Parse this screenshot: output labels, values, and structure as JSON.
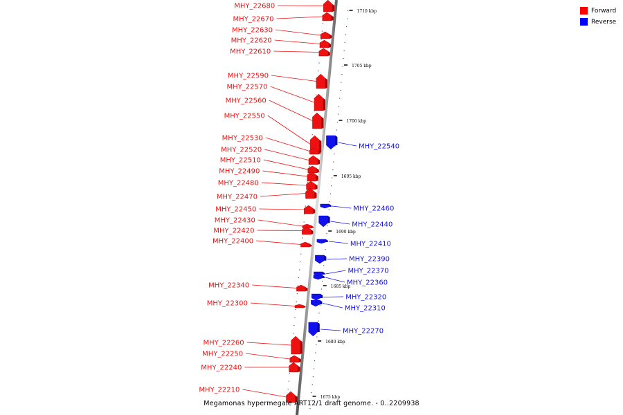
{
  "legend": {
    "forward_label": "Forward",
    "reverse_label": "Reverse",
    "forward_color": "#ff0000",
    "reverse_color": "#0000ff"
  },
  "caption": "Megamonas hypermegale ART12/1 draft genome. - 0..2209938",
  "strand_colors": {
    "forward": "#ee1111",
    "reverse": "#1111ee"
  },
  "ruler_ticks": [
    "1710 kbp",
    "1705 kbp",
    "1700 kbp",
    "1695 kbp",
    "1690 kbp",
    "1685 kbp",
    "1680 kbp",
    "1675 kbp"
  ],
  "forward_genes": [
    "MHY_22680",
    "MHY_22670",
    "MHY_22630",
    "MHY_22620",
    "MHY_22610",
    "MHY_22590",
    "MHY_22570",
    "MHY_22560",
    "MHY_22550",
    "MHY_22530",
    "MHY_22520",
    "MHY_22510",
    "MHY_22490",
    "MHY_22480",
    "MHY_22470",
    "MHY_22450",
    "MHY_22430",
    "MHY_22420",
    "MHY_22400",
    "MHY_22340",
    "MHY_22300",
    "MHY_22260",
    "MHY_22250",
    "MHY_22240",
    "MHY_22210"
  ],
  "reverse_genes": [
    "MHY_22540",
    "MHY_22460",
    "MHY_22440",
    "MHY_22410",
    "MHY_22390",
    "MHY_22370",
    "MHY_22360",
    "MHY_22320",
    "MHY_22310",
    "MHY_22270"
  ]
}
